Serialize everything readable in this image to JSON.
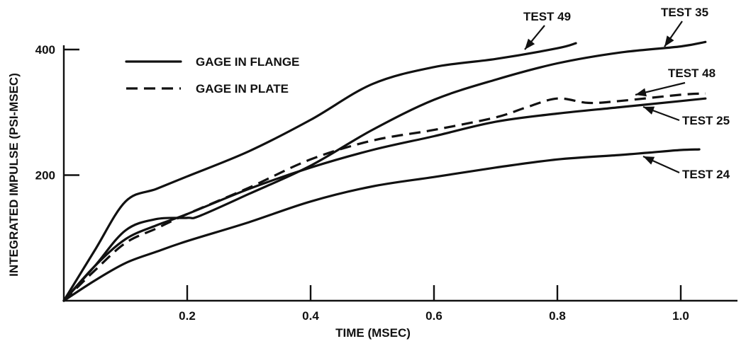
{
  "chart_data": {
    "type": "line",
    "title": "",
    "xlabel": "TIME (MSEC)",
    "ylabel": "INTEGRATED IMPULSE (PSI-MSEC)",
    "xlim": [
      0,
      1.05
    ],
    "ylim": [
      0,
      410
    ],
    "xticks": [
      0.2,
      0.4,
      0.6,
      0.8,
      1.0
    ],
    "xtick_labels": [
      "0.2",
      "0.4",
      "0.6",
      "0.8",
      "1.0"
    ],
    "yticks": [
      200,
      400
    ],
    "ytick_labels": [
      "200",
      "400"
    ],
    "grid": false,
    "legend_position": "top-left",
    "legend": [
      {
        "label": "GAGE IN FLANGE",
        "style": "solid"
      },
      {
        "label": "GAGE IN PLATE",
        "style": "dashed"
      }
    ],
    "series": [
      {
        "name": "TEST 49",
        "style": "solid",
        "x": [
          0,
          0.05,
          0.1,
          0.15,
          0.2,
          0.3,
          0.4,
          0.5,
          0.6,
          0.7,
          0.8,
          0.83
        ],
        "y": [
          0,
          80,
          158,
          178,
          198,
          238,
          288,
          345,
          372,
          385,
          402,
          410
        ]
      },
      {
        "name": "TEST 35",
        "style": "solid",
        "x": [
          0,
          0.05,
          0.1,
          0.15,
          0.2,
          0.22,
          0.3,
          0.4,
          0.5,
          0.6,
          0.7,
          0.8,
          0.9,
          1.0,
          1.04
        ],
        "y": [
          0,
          55,
          112,
          130,
          132,
          135,
          170,
          215,
          272,
          320,
          352,
          378,
          395,
          405,
          412
        ]
      },
      {
        "name": "TEST 48",
        "style": "dashed",
        "x": [
          0,
          0.05,
          0.1,
          0.15,
          0.2,
          0.3,
          0.4,
          0.5,
          0.6,
          0.7,
          0.75,
          0.8,
          0.85,
          0.9,
          1.0,
          1.04
        ],
        "y": [
          0,
          48,
          92,
          115,
          138,
          180,
          225,
          255,
          272,
          292,
          308,
          322,
          315,
          318,
          328,
          330
        ]
      },
      {
        "name": "TEST 25",
        "style": "solid",
        "x": [
          0,
          0.05,
          0.1,
          0.15,
          0.2,
          0.3,
          0.4,
          0.5,
          0.6,
          0.7,
          0.8,
          0.9,
          1.0,
          1.04
        ],
        "y": [
          0,
          55,
          98,
          120,
          138,
          178,
          212,
          240,
          262,
          285,
          298,
          308,
          318,
          322
        ]
      },
      {
        "name": "TEST 24",
        "style": "solid",
        "x": [
          0,
          0.05,
          0.1,
          0.15,
          0.2,
          0.3,
          0.4,
          0.5,
          0.6,
          0.7,
          0.8,
          0.9,
          0.95,
          1.0,
          1.03
        ],
        "y": [
          0,
          32,
          60,
          78,
          95,
          125,
          158,
          182,
          197,
          212,
          225,
          232,
          236,
          240,
          241
        ]
      }
    ]
  }
}
